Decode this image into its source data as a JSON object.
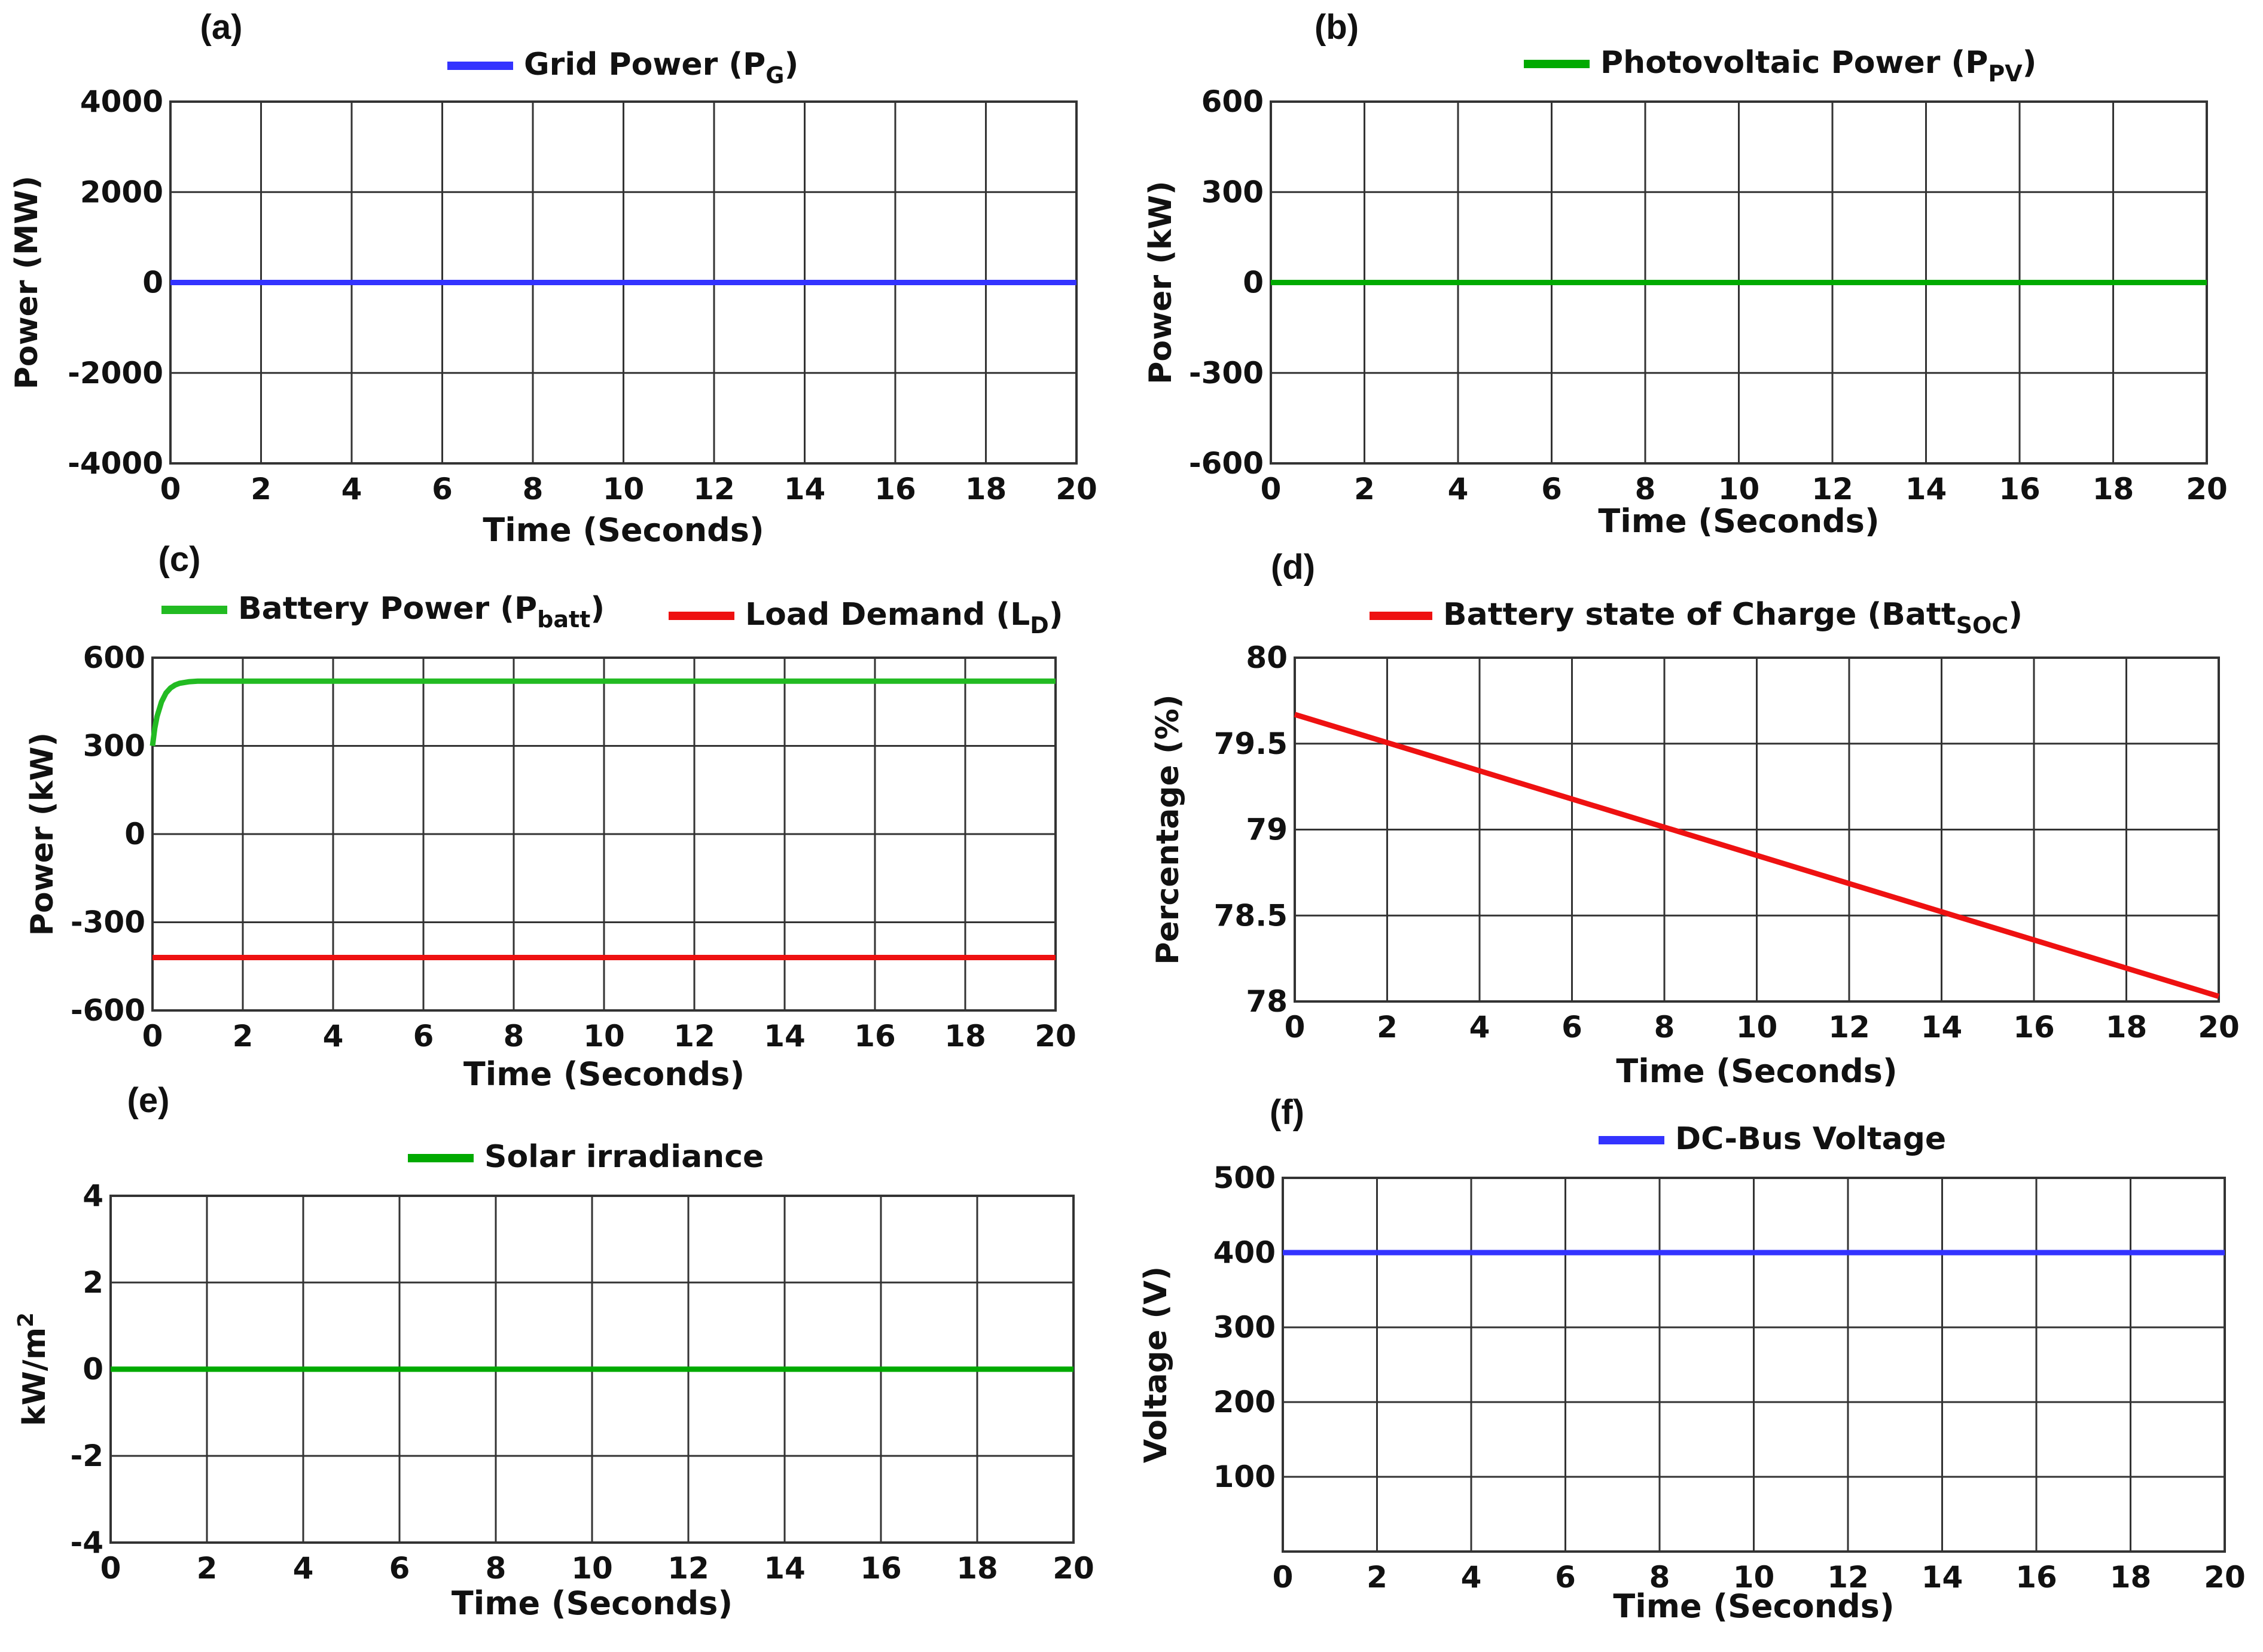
{
  "figure": {
    "panels": [
      "(a)",
      "(b)",
      "(c)",
      "(d)",
      "(e)",
      "(f)"
    ]
  },
  "chart_data": [
    {
      "id": "a",
      "type": "line",
      "panel_label": "(a)",
      "title": "",
      "xlabel": "Time (Seconds)",
      "ylabel": "Power (MW)",
      "xlim": [
        0,
        20
      ],
      "ylim": [
        -4000,
        4000
      ],
      "xticks": [
        0,
        2,
        4,
        6,
        8,
        10,
        12,
        14,
        16,
        18,
        20
      ],
      "yticks": [
        -4000,
        -2000,
        0,
        2000,
        4000
      ],
      "ytick_labels": [
        "-4000",
        "-2000",
        "0",
        "2000",
        "4000"
      ],
      "grid": true,
      "series": [
        {
          "name": "Grid Power (P",
          "sub": "G",
          "suffix": ")",
          "color": "#3333ff",
          "x": [
            0,
            20
          ],
          "y": [
            0,
            0
          ]
        }
      ]
    },
    {
      "id": "b",
      "type": "line",
      "panel_label": "(b)",
      "title": "",
      "xlabel": "Time (Seconds)",
      "ylabel": "Power (kW)",
      "xlim": [
        0,
        20
      ],
      "ylim": [
        -600,
        600
      ],
      "xticks": [
        0,
        2,
        4,
        6,
        8,
        10,
        12,
        14,
        16,
        18,
        20
      ],
      "yticks": [
        -600,
        -300,
        0,
        300,
        600
      ],
      "ytick_labels": [
        "-600",
        "-300",
        "0",
        "300",
        "600"
      ],
      "grid": true,
      "series": [
        {
          "name": "Photovoltaic Power (P",
          "sub": "PV",
          "suffix": ")",
          "color": "#00aa00",
          "x": [
            0,
            20
          ],
          "y": [
            0,
            0
          ]
        }
      ]
    },
    {
      "id": "c",
      "type": "line",
      "panel_label": "(c)",
      "title": "",
      "xlabel": "Time (Seconds)",
      "ylabel": "Power (kW)",
      "xlim": [
        0,
        20
      ],
      "ylim": [
        -600,
        600
      ],
      "xticks": [
        0,
        2,
        4,
        6,
        8,
        10,
        12,
        14,
        16,
        18,
        20
      ],
      "yticks": [
        -600,
        -300,
        0,
        300,
        600
      ],
      "ytick_labels": [
        "-600",
        "-300",
        "0",
        "300",
        "600"
      ],
      "grid": true,
      "series": [
        {
          "name": "Battery Power (P",
          "sub": "batt",
          "suffix": ")",
          "color": "#22bb22",
          "x": [
            0,
            0.05,
            0.1,
            0.2,
            0.3,
            0.4,
            0.5,
            0.6,
            0.8,
            1.0,
            1.5,
            2,
            20
          ],
          "y": [
            300,
            360,
            400,
            450,
            480,
            497,
            507,
            513,
            518,
            520,
            520,
            520,
            520
          ]
        },
        {
          "name": "Load Demand (L",
          "sub": "D",
          "suffix": ")",
          "color": "#ee1111",
          "x": [
            0,
            20
          ],
          "y": [
            -420,
            -420
          ]
        }
      ]
    },
    {
      "id": "d",
      "type": "line",
      "panel_label": "(d)",
      "title": "",
      "xlabel": "Time (Seconds)",
      "ylabel": "Percentage (%)",
      "xlim": [
        0,
        20
      ],
      "ylim": [
        78,
        80
      ],
      "xticks": [
        0,
        2,
        4,
        6,
        8,
        10,
        12,
        14,
        16,
        18,
        20
      ],
      "yticks": [
        78,
        78.5,
        79,
        79.5,
        80
      ],
      "ytick_labels": [
        "78",
        "78.5",
        "79",
        "79.5",
        "80"
      ],
      "grid": true,
      "series": [
        {
          "name": "Battery state of Charge (Batt",
          "sub": "SOC",
          "suffix": ")",
          "color": "#ee1111",
          "x": [
            0,
            20
          ],
          "y": [
            79.67,
            78.03
          ]
        }
      ]
    },
    {
      "id": "e",
      "type": "line",
      "panel_label": "(e)",
      "title": "",
      "xlabel": "Time (Seconds)",
      "ylabel": "kW/m",
      "ylabel_sup": "2",
      "xlim": [
        0,
        20
      ],
      "ylim": [
        -4,
        4
      ],
      "xticks": [
        0,
        2,
        4,
        6,
        8,
        10,
        12,
        14,
        16,
        18,
        20
      ],
      "yticks": [
        -4,
        -2,
        0,
        2,
        4
      ],
      "ytick_labels": [
        "-4",
        "-2",
        "0",
        "2",
        "4"
      ],
      "grid": true,
      "series": [
        {
          "name": "Solar irradiance",
          "sub": "",
          "suffix": "",
          "color": "#00aa00",
          "x": [
            0,
            20
          ],
          "y": [
            0,
            0
          ]
        }
      ]
    },
    {
      "id": "f",
      "type": "line",
      "panel_label": "(f)",
      "title": "",
      "xlabel": "Time (Seconds)",
      "ylabel": "Voltage (V)",
      "xlim": [
        0,
        20
      ],
      "ylim": [
        0,
        500
      ],
      "xticks": [
        0,
        2,
        4,
        6,
        8,
        10,
        12,
        14,
        16,
        18,
        20
      ],
      "yticks": [
        100,
        200,
        300,
        400,
        500
      ],
      "ytick_labels": [
        "100",
        "200",
        "300",
        "400",
        "500"
      ],
      "grid": true,
      "series": [
        {
          "name": "DC-Bus Voltage",
          "sub": "",
          "suffix": "",
          "color": "#3333ff",
          "x": [
            0,
            20
          ],
          "y": [
            400,
            400
          ]
        }
      ]
    }
  ]
}
